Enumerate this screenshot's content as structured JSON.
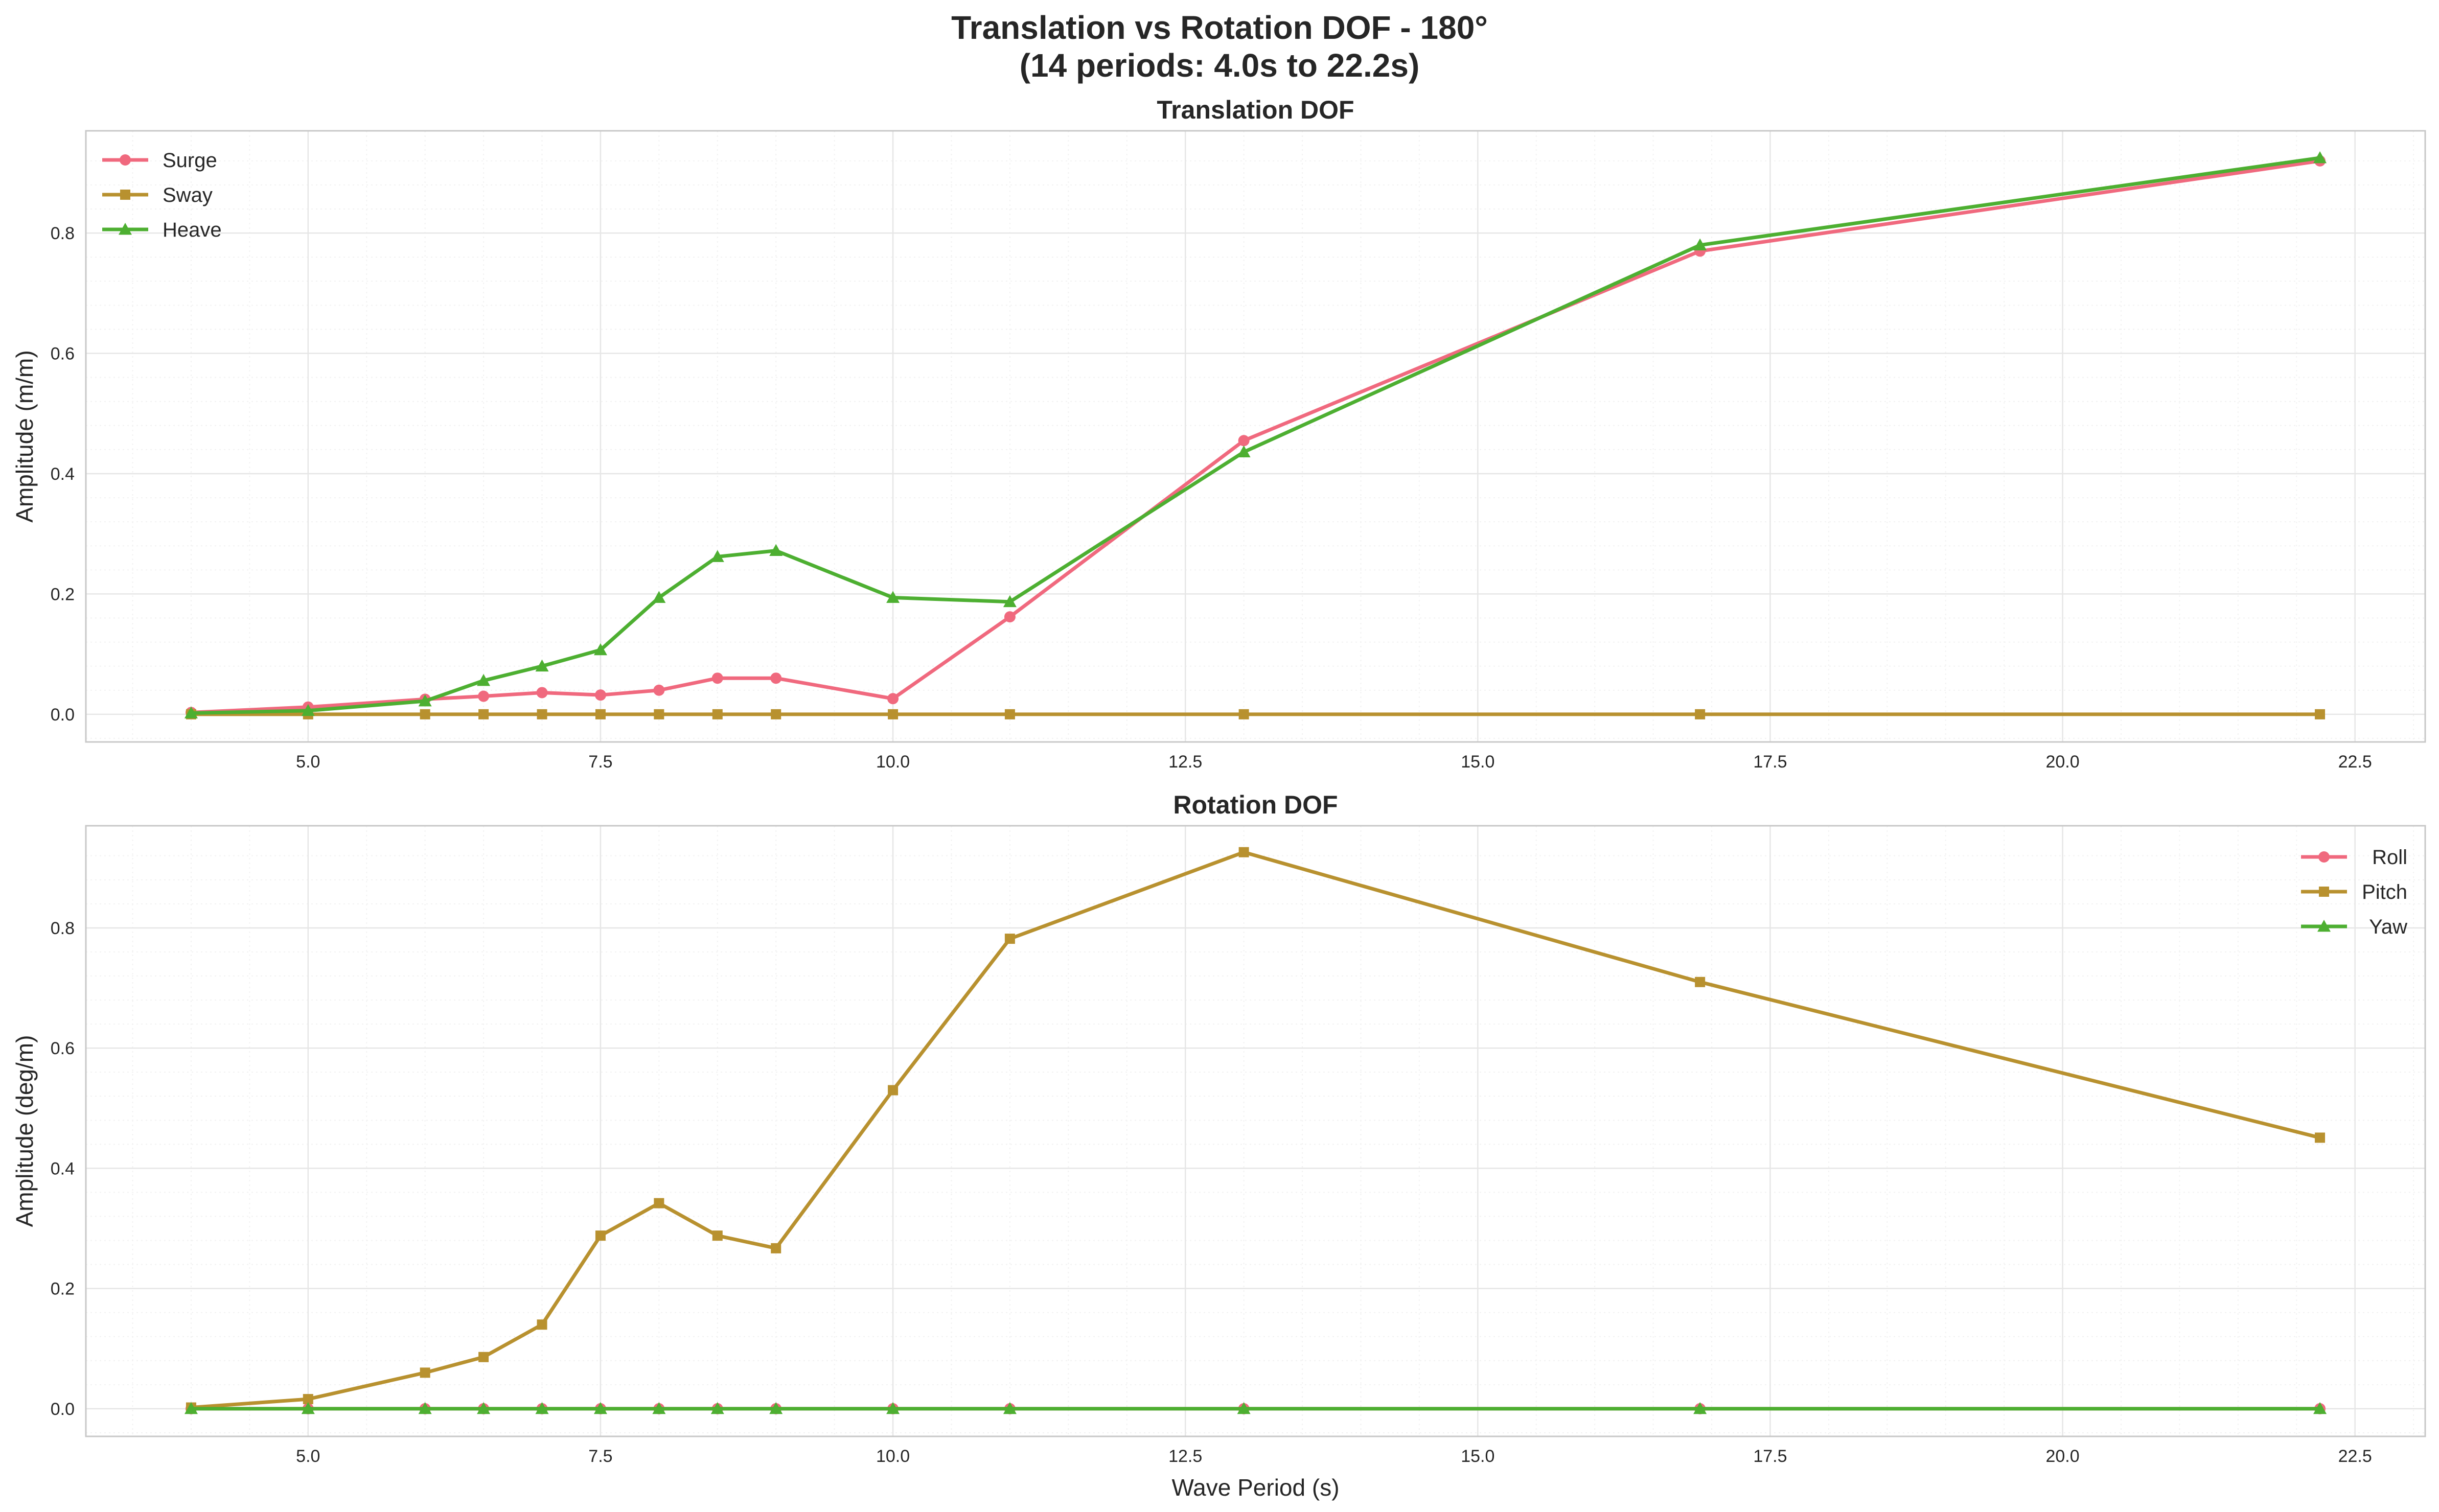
{
  "figure": {
    "title_line1": "Translation vs Rotation DOF - 180°",
    "title_line2": "(14 periods: 4.0s to 22.2s)"
  },
  "chart_data": [
    {
      "type": "line",
      "title": "Translation DOF",
      "xlabel": "",
      "ylabel": "Amplitude (m/m)",
      "xlim": [
        3.1,
        23.1
      ],
      "ylim": [
        -0.046,
        0.97
      ],
      "xticks": [
        5.0,
        7.5,
        10.0,
        12.5,
        15.0,
        17.5,
        20.0,
        22.5
      ],
      "xtick_labels": [
        "5.0",
        "7.5",
        "10.0",
        "12.5",
        "15.0",
        "17.5",
        "20.0",
        "22.5"
      ],
      "yticks": [
        0.0,
        0.2,
        0.4,
        0.6,
        0.8
      ],
      "ytick_labels": [
        "0.0",
        "0.2",
        "0.4",
        "0.6",
        "0.8"
      ],
      "grid": true,
      "legend_position": "top-left",
      "x": [
        4.0,
        5.0,
        6.0,
        6.5,
        7.0,
        7.5,
        8.0,
        8.5,
        9.0,
        10.0,
        11.0,
        13.0,
        16.9,
        22.2
      ],
      "series": [
        {
          "name": "Surge",
          "marker": "circle",
          "color": "#f0697e",
          "values": [
            0.003,
            0.012,
            0.025,
            0.03,
            0.036,
            0.032,
            0.04,
            0.06,
            0.06,
            0.026,
            0.162,
            0.455,
            0.77,
            0.92
          ]
        },
        {
          "name": "Sway",
          "marker": "square",
          "color": "#b8912f",
          "values": [
            0.0,
            0.0,
            0.0,
            0.0,
            0.0,
            0.0,
            0.0,
            0.0,
            0.0,
            0.0,
            0.0,
            0.0,
            0.0,
            0.0
          ]
        },
        {
          "name": "Heave",
          "marker": "triangle",
          "color": "#4daf31",
          "values": [
            0.002,
            0.006,
            0.022,
            0.056,
            0.08,
            0.107,
            0.194,
            0.262,
            0.272,
            0.194,
            0.187,
            0.436,
            0.78,
            0.925
          ]
        }
      ]
    },
    {
      "type": "line",
      "title": "Rotation DOF",
      "xlabel": "Wave Period (s)",
      "ylabel": "Amplitude (deg/m)",
      "xlim": [
        3.1,
        23.1
      ],
      "ylim": [
        -0.046,
        0.97
      ],
      "xticks": [
        5.0,
        7.5,
        10.0,
        12.5,
        15.0,
        17.5,
        20.0,
        22.5
      ],
      "xtick_labels": [
        "5.0",
        "7.5",
        "10.0",
        "12.5",
        "15.0",
        "17.5",
        "20.0",
        "22.5"
      ],
      "yticks": [
        0.0,
        0.2,
        0.4,
        0.6,
        0.8
      ],
      "ytick_labels": [
        "0.0",
        "0.2",
        "0.4",
        "0.6",
        "0.8"
      ],
      "grid": true,
      "legend_position": "top-right",
      "x": [
        4.0,
        5.0,
        6.0,
        6.5,
        7.0,
        7.5,
        8.0,
        8.5,
        9.0,
        10.0,
        11.0,
        13.0,
        16.9,
        22.2
      ],
      "series": [
        {
          "name": "Roll",
          "marker": "circle",
          "color": "#f0697e",
          "values": [
            0.0,
            0.0,
            0.0,
            0.0,
            0.0,
            0.0,
            0.0,
            0.0,
            0.0,
            0.0,
            0.0,
            0.0,
            0.0,
            0.0
          ]
        },
        {
          "name": "Pitch",
          "marker": "square",
          "color": "#b8912f",
          "values": [
            0.002,
            0.016,
            0.06,
            0.086,
            0.14,
            0.288,
            0.342,
            0.288,
            0.267,
            0.53,
            0.782,
            0.926,
            0.71,
            0.451
          ]
        },
        {
          "name": "Yaw",
          "marker": "triangle",
          "color": "#4daf31",
          "values": [
            0.0,
            0.0,
            0.0,
            0.0,
            0.0,
            0.0,
            0.0,
            0.0,
            0.0,
            0.0,
            0.0,
            0.0,
            0.0,
            0.0
          ]
        }
      ]
    }
  ]
}
